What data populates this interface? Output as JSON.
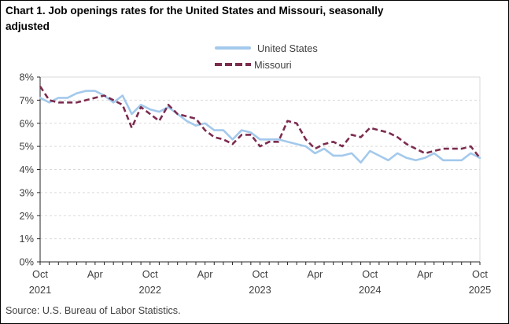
{
  "title": {
    "line1": "Chart 1. Job openings rates for the United States and Missouri, seasonally",
    "line2": "adjusted"
  },
  "source": "Source: U.S. Bureau of Labor Statistics.",
  "chart_data": {
    "type": "line",
    "title": "Chart 1. Job openings rates for the United States and Missouri, seasonally adjusted",
    "x_start": "Oct 2021",
    "x_end": "Oct 2025",
    "frequency": "monthly",
    "xlabel": "",
    "ylabel": "",
    "y_unit": "%",
    "ylim": [
      0,
      8
    ],
    "y_ticks": [
      "0%",
      "1%",
      "2%",
      "3%",
      "4%",
      "5%",
      "6%",
      "7%",
      "8%"
    ],
    "x_tick_labels": [
      {
        "month": "Oct",
        "year": "2021",
        "index": 0
      },
      {
        "month": "Apr",
        "year": "",
        "index": 6
      },
      {
        "month": "Oct",
        "year": "2022",
        "index": 12
      },
      {
        "month": "Apr",
        "year": "",
        "index": 18
      },
      {
        "month": "Oct",
        "year": "2023",
        "index": 24
      },
      {
        "month": "Apr",
        "year": "",
        "index": 30
      },
      {
        "month": "Oct",
        "year": "2024",
        "index": 36
      },
      {
        "month": "Apr",
        "year": "",
        "index": 42
      },
      {
        "month": "Oct",
        "year": "2025",
        "index": 48
      }
    ],
    "grid": "horizontal-dashed",
    "grid_color": "#D9D9D9",
    "axis_color": "#262626",
    "tick_text_color": "#404040",
    "legend_position": "top-center",
    "series": [
      {
        "name": "United States",
        "style": "solid",
        "color": "#A3C9EC",
        "values": [
          7.1,
          6.9,
          7.1,
          7.1,
          7.3,
          7.4,
          7.4,
          7.2,
          6.9,
          7.2,
          6.4,
          6.8,
          6.6,
          6.5,
          6.7,
          6.4,
          6.1,
          5.9,
          6.0,
          5.7,
          5.7,
          5.3,
          5.7,
          5.6,
          5.3,
          5.3,
          5.3,
          5.2,
          5.1,
          5.0,
          4.7,
          4.9,
          4.6,
          4.6,
          4.7,
          4.3,
          4.8,
          4.6,
          4.4,
          4.7,
          4.5,
          4.4,
          4.5,
          4.7,
          4.4,
          4.4,
          4.4,
          4.7,
          4.5
        ]
      },
      {
        "name": "Missouri",
        "style": "dashed",
        "color": "#7C2C4F",
        "values": [
          7.6,
          7.0,
          6.9,
          6.9,
          6.9,
          7.0,
          7.1,
          7.2,
          7.0,
          6.8,
          5.8,
          6.7,
          6.4,
          6.1,
          6.8,
          6.4,
          6.3,
          6.2,
          5.7,
          5.4,
          5.3,
          5.1,
          5.5,
          5.5,
          5.0,
          5.2,
          5.2,
          6.1,
          6.0,
          5.3,
          4.9,
          5.1,
          5.2,
          5.0,
          5.5,
          5.4,
          5.8,
          5.7,
          5.6,
          5.4,
          5.1,
          4.9,
          4.7,
          4.8,
          4.9,
          4.9,
          4.9,
          5.0,
          4.5
        ]
      }
    ]
  }
}
